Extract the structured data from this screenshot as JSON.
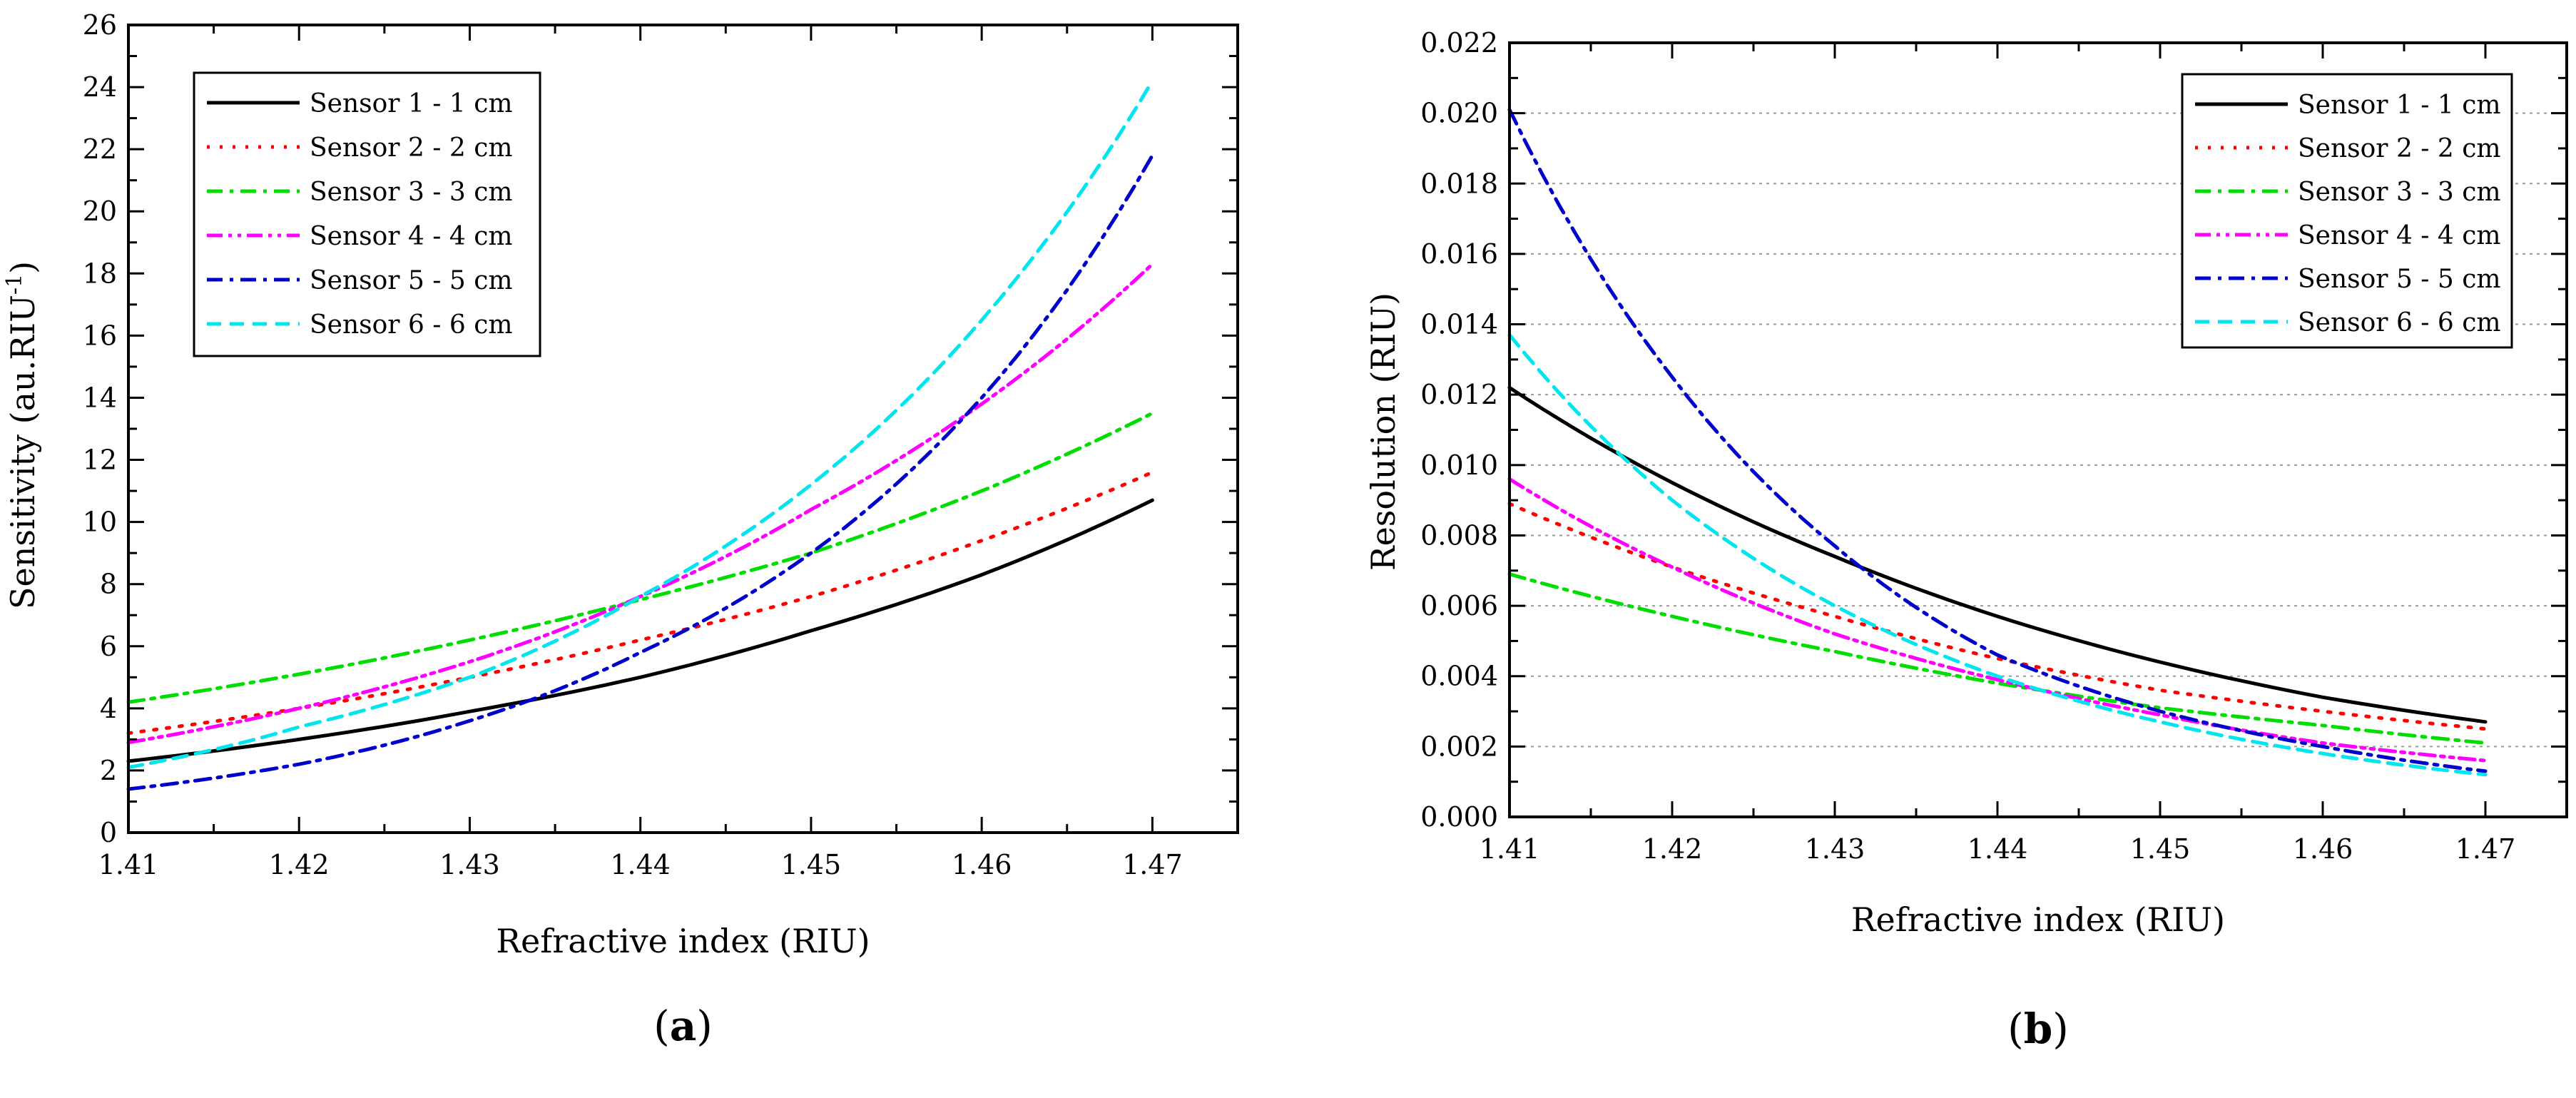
{
  "chart_data": [
    {
      "panel_label": "(a)",
      "panel_label_parts": {
        "open": "(",
        "letter": "a",
        "close": ")"
      },
      "type": "line",
      "xlabel": "Refractive index (RIU)",
      "ylabel": "Sensitivity (au.RIU",
      "ylabel_superscript": "-1",
      "ylabel_suffix": ")",
      "xlim": [
        1.41,
        1.475
      ],
      "ylim": [
        0,
        26
      ],
      "x_ticks": [
        1.41,
        1.42,
        1.43,
        1.44,
        1.45,
        1.46,
        1.47
      ],
      "x_tick_labels": [
        "1.41",
        "1.42",
        "1.43",
        "1.44",
        "1.45",
        "1.46",
        "1.47"
      ],
      "y_ticks": [
        0,
        2,
        4,
        6,
        8,
        10,
        12,
        14,
        16,
        18,
        20,
        22,
        24,
        26
      ],
      "y_tick_labels": [
        "0",
        "2",
        "4",
        "6",
        "8",
        "10",
        "12",
        "14",
        "16",
        "18",
        "20",
        "22",
        "24",
        "26"
      ],
      "grid": false,
      "legend_position": "top-left",
      "x": [
        1.41,
        1.42,
        1.43,
        1.44,
        1.45,
        1.46,
        1.47
      ],
      "series": [
        {
          "name": "Sensor 1 - 1 cm",
          "color": "#000000",
          "dash": "solid",
          "values": [
            2.3,
            3.0,
            3.9,
            5.0,
            6.5,
            8.3,
            10.7
          ]
        },
        {
          "name": "Sensor 2 - 2 cm",
          "color": "#ff0000",
          "dash": "dot",
          "values": [
            3.2,
            4.0,
            5.0,
            6.2,
            7.6,
            9.4,
            11.6
          ]
        },
        {
          "name": "Sensor 3 - 3 cm",
          "color": "#00dd00",
          "dash": "dashdot",
          "values": [
            4.2,
            5.1,
            6.2,
            7.5,
            9.0,
            11.0,
            13.5
          ]
        },
        {
          "name": "Sensor 4 - 4 cm",
          "color": "#ff00ff",
          "dash": "dashdotdot",
          "values": [
            2.9,
            4.0,
            5.5,
            7.6,
            10.4,
            13.8,
            18.3
          ]
        },
        {
          "name": "Sensor 5 - 5 cm",
          "color": "#0000cc",
          "dash": "dashdot",
          "values": [
            1.4,
            2.2,
            3.6,
            5.8,
            9.0,
            14.0,
            21.8
          ]
        },
        {
          "name": "Sensor 6 - 6 cm",
          "color": "#00e5ee",
          "dash": "dash",
          "values": [
            2.1,
            3.4,
            5.0,
            7.6,
            11.2,
            16.5,
            24.2
          ]
        }
      ]
    },
    {
      "panel_label": "(b)",
      "panel_label_parts": {
        "open": "(",
        "letter": "b",
        "close": ")"
      },
      "type": "line",
      "xlabel": "Refractive index (RIU)",
      "ylabel": "Resolution (RIU)",
      "xlim": [
        1.41,
        1.475
      ],
      "ylim": [
        0,
        0.022
      ],
      "x_ticks": [
        1.41,
        1.42,
        1.43,
        1.44,
        1.45,
        1.46,
        1.47
      ],
      "x_tick_labels": [
        "1.41",
        "1.42",
        "1.43",
        "1.44",
        "1.45",
        "1.46",
        "1.47"
      ],
      "y_ticks": [
        0,
        0.002,
        0.004,
        0.006,
        0.008,
        0.01,
        0.012,
        0.014,
        0.016,
        0.018,
        0.02,
        0.022
      ],
      "y_tick_labels": [
        "0.000",
        "0.002",
        "0.004",
        "0.006",
        "0.008",
        "0.010",
        "0.012",
        "0.014",
        "0.016",
        "0.018",
        "0.020",
        "0.022"
      ],
      "grid": true,
      "legend_position": "top-right",
      "x": [
        1.41,
        1.42,
        1.43,
        1.44,
        1.45,
        1.46,
        1.47
      ],
      "series": [
        {
          "name": "Sensor 1 - 1 cm",
          "color": "#000000",
          "dash": "solid",
          "values": [
            0.0122,
            0.0095,
            0.0074,
            0.0057,
            0.0044,
            0.0034,
            0.0027
          ]
        },
        {
          "name": "Sensor 2 - 2 cm",
          "color": "#ff0000",
          "dash": "dot",
          "values": [
            0.0089,
            0.0071,
            0.0057,
            0.0045,
            0.0036,
            0.003,
            0.0025
          ]
        },
        {
          "name": "Sensor 3 - 3 cm",
          "color": "#00dd00",
          "dash": "dashdot",
          "values": [
            0.0069,
            0.0057,
            0.0047,
            0.0038,
            0.0031,
            0.0026,
            0.0021
          ]
        },
        {
          "name": "Sensor 4 - 4 cm",
          "color": "#ff00ff",
          "dash": "dashdotdot",
          "values": [
            0.0096,
            0.0071,
            0.0052,
            0.0039,
            0.0029,
            0.0021,
            0.0016
          ]
        },
        {
          "name": "Sensor 5 - 5 cm",
          "color": "#0000cc",
          "dash": "dashdot",
          "values": [
            0.0201,
            0.0125,
            0.0077,
            0.0046,
            0.003,
            0.002,
            0.0013
          ]
        },
        {
          "name": "Sensor 6 - 6 cm",
          "color": "#00e5ee",
          "dash": "dash",
          "values": [
            0.0137,
            0.009,
            0.006,
            0.004,
            0.0027,
            0.0018,
            0.0012
          ]
        }
      ]
    }
  ]
}
